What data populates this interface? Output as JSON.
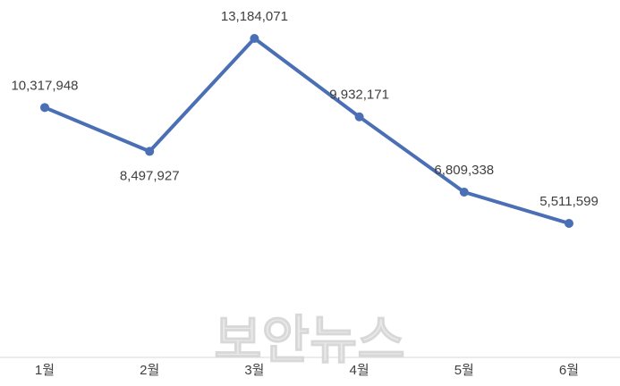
{
  "chart_data": {
    "type": "line",
    "categories": [
      "1월",
      "2월",
      "3월",
      "4월",
      "5월",
      "6월"
    ],
    "values": [
      10317948,
      8497927,
      13184071,
      9932171,
      6809338,
      5511599
    ],
    "value_labels": [
      "10,317,948",
      "8,497,927",
      "13,184,071",
      "9,932,171",
      "6,809,338",
      "5,511,599"
    ],
    "color": "#4a6fb5"
  },
  "watermark": "보안뉴스"
}
